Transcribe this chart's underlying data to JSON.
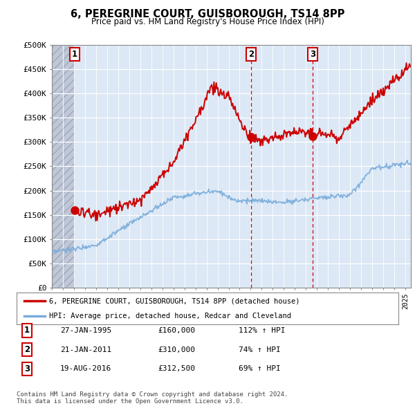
{
  "title": "6, PEREGRINE COURT, GUISBOROUGH, TS14 8PP",
  "subtitle": "Price paid vs. HM Land Registry's House Price Index (HPI)",
  "ylabel_ticks": [
    "£0",
    "£50K",
    "£100K",
    "£150K",
    "£200K",
    "£250K",
    "£300K",
    "£350K",
    "£400K",
    "£450K",
    "£500K"
  ],
  "ytick_values": [
    0,
    50000,
    100000,
    150000,
    200000,
    250000,
    300000,
    350000,
    400000,
    450000,
    500000
  ],
  "ylim": [
    0,
    500000
  ],
  "xlim_start": 1993.0,
  "xlim_end": 2025.5,
  "sale_year_nums": [
    1995.07,
    2011.05,
    2016.63
  ],
  "sale_prices": [
    160000,
    310000,
    312500
  ],
  "sale_labels": [
    "1",
    "2",
    "3"
  ],
  "legend_line1": "6, PEREGRINE COURT, GUISBOROUGH, TS14 8PP (detached house)",
  "legend_line2": "HPI: Average price, detached house, Redcar and Cleveland",
  "table_rows": [
    [
      "1",
      "27-JAN-1995",
      "£160,000",
      "112% ↑ HPI"
    ],
    [
      "2",
      "21-JAN-2011",
      "£310,000",
      "74% ↑ HPI"
    ],
    [
      "3",
      "19-AUG-2016",
      "£312,500",
      "69% ↑ HPI"
    ]
  ],
  "footer": "Contains HM Land Registry data © Crown copyright and database right 2024.\nThis data is licensed under the Open Government Licence v3.0.",
  "red_color": "#cc0000",
  "blue_color": "#7aacdc",
  "bg_color": "#dce8f5",
  "hatch_color": "#c0c8d8",
  "grid_color": "#ffffff",
  "hatch_end_year": 1995.07
}
